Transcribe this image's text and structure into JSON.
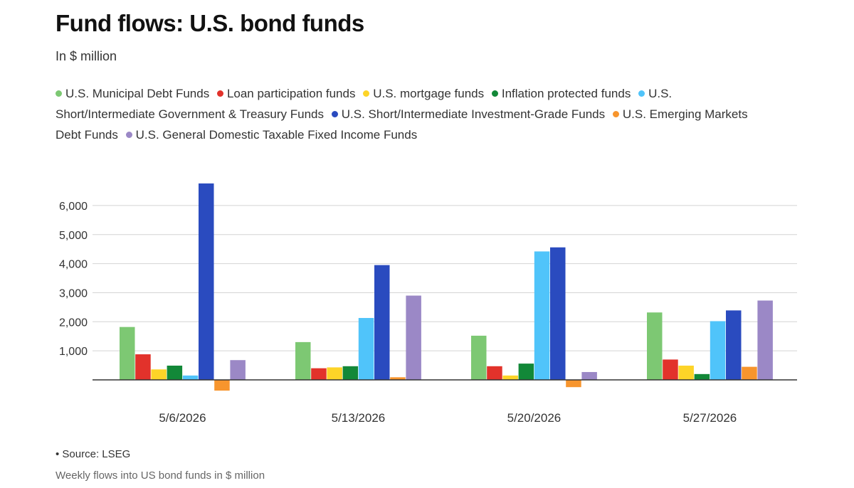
{
  "header": {
    "title": "Fund flows: U.S. bond funds",
    "subtitle": "In $ million"
  },
  "footer": {
    "source": "• Source: LSEG",
    "caption": "Weekly flows into US bond funds in $ million"
  },
  "chart_data": {
    "type": "bar",
    "title": "Fund flows: U.S. bond funds",
    "subtitle": "In $ million",
    "xlabel": "",
    "ylabel": "",
    "categories": [
      "5/6/2026",
      "5/13/2026",
      "5/20/2026",
      "5/27/2026"
    ],
    "ylim": [
      -600,
      7000
    ],
    "yticks": [
      1000,
      2000,
      3000,
      4000,
      5000,
      6000
    ],
    "ytick_labels": [
      "1,000",
      "2,000",
      "3,000",
      "4,000",
      "5,000",
      "6,000"
    ],
    "grid": true,
    "legend_position": "top",
    "series": [
      {
        "name": "U.S. Municipal Debt Funds",
        "color": "#7dc873",
        "values": [
          1820,
          1300,
          1520,
          2320
        ]
      },
      {
        "name": "Loan participation funds",
        "color": "#e2322b",
        "values": [
          880,
          400,
          470,
          700
        ]
      },
      {
        "name": "U.S. mortgage funds",
        "color": "#fdd428",
        "values": [
          360,
          430,
          150,
          490
        ]
      },
      {
        "name": "Inflation protected funds",
        "color": "#128838",
        "values": [
          490,
          470,
          560,
          200
        ]
      },
      {
        "name": "U.S. Short/Intermediate Government & Treasury Funds",
        "color": "#50c4fa",
        "values": [
          150,
          2130,
          4420,
          2020
        ]
      },
      {
        "name": "U.S. Short/Intermediate Investment-Grade Funds",
        "color": "#2a4bbf",
        "values": [
          6760,
          3950,
          4560,
          2390
        ]
      },
      {
        "name": "U.S. Emerging Markets Debt Funds",
        "color": "#f7952d",
        "values": [
          -370,
          90,
          -250,
          450
        ]
      },
      {
        "name": "U.S. General Domestic Taxable Fixed Income Funds",
        "color": "#9b88c6",
        "values": [
          680,
          2900,
          270,
          2730
        ]
      }
    ]
  }
}
